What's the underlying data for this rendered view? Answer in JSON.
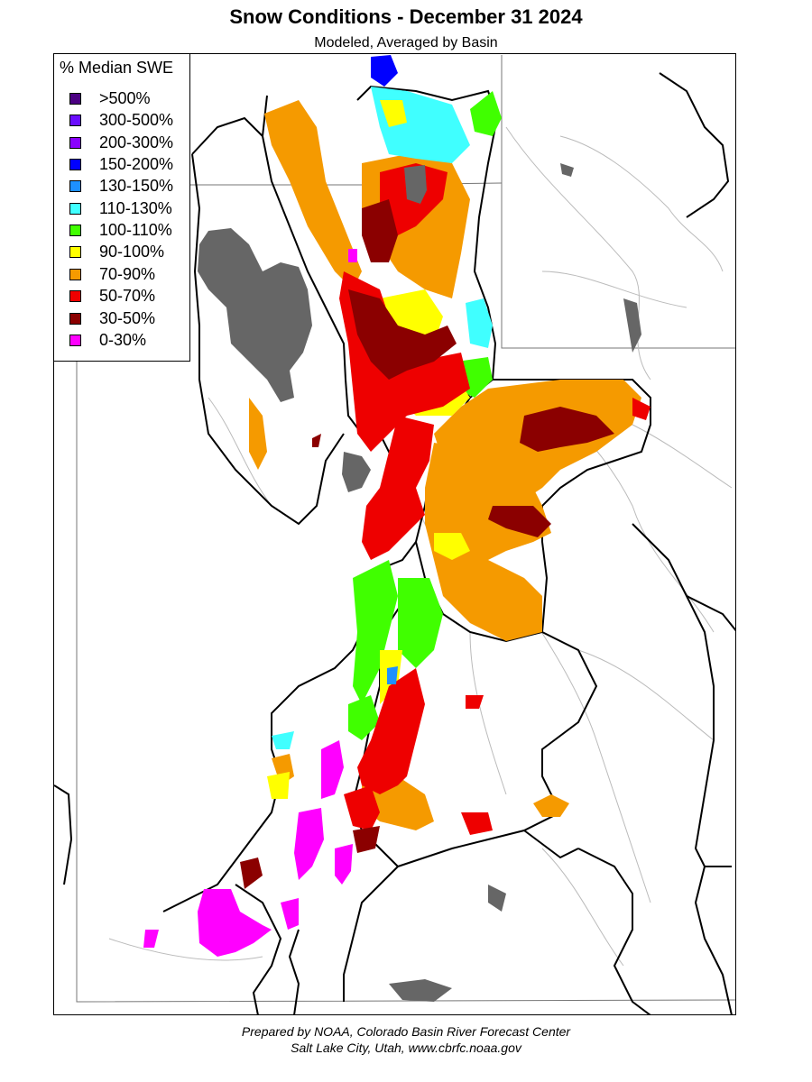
{
  "title": "Snow Conditions - December 31 2024",
  "subtitle": "Modeled, Averaged by Basin",
  "legend": {
    "title": "% Median SWE",
    "items": [
      {
        "label": ">500%",
        "color": "#4b0082"
      },
      {
        "label": "300-500%",
        "color": "#6a0dff"
      },
      {
        "label": "200-300%",
        "color": "#8a00ff"
      },
      {
        "label": "150-200%",
        "color": "#0000ff"
      },
      {
        "label": "130-150%",
        "color": "#1e90ff"
      },
      {
        "label": "110-130%",
        "color": "#40ffff"
      },
      {
        "label": "100-110%",
        "color": "#40ff00"
      },
      {
        "label": "90-100%",
        "color": "#ffff00"
      },
      {
        "label": "70-90%",
        "color": "#f59a00"
      },
      {
        "label": "50-70%",
        "color": "#ee0000"
      },
      {
        "label": "30-50%",
        "color": "#8b0000"
      },
      {
        "label": "0-30%",
        "color": "#ff00ff"
      }
    ]
  },
  "map": {
    "lake_color": "#666666",
    "boundary_color": "#000000",
    "state_line_color": "#777777",
    "river_color": "#bbbbbb"
  },
  "credit": {
    "line1": "Prepared by NOAA, Colorado Basin River Forecast Center",
    "line2": "Salt Lake City, Utah, www.cbrfc.noaa.gov"
  }
}
